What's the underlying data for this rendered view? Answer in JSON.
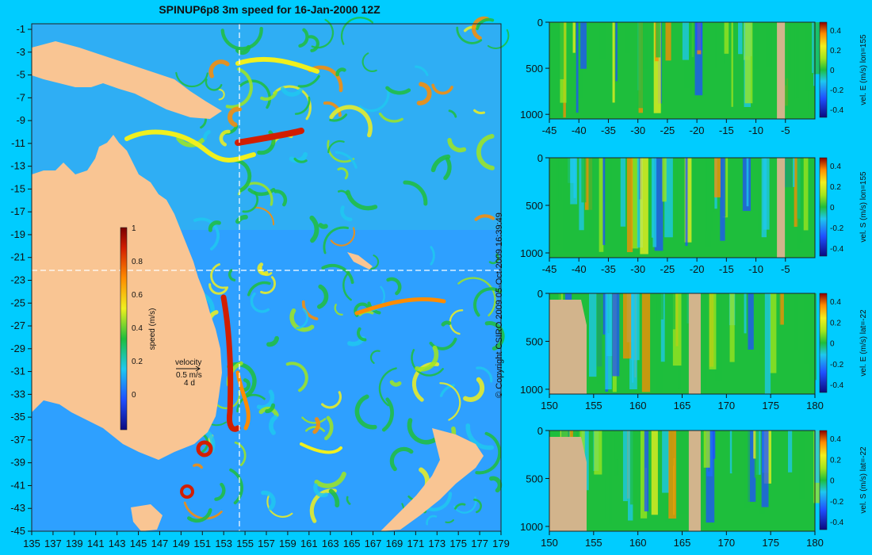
{
  "title": "SPINUP6p8 3m speed for 16-Jan-2000 12Z",
  "copyright": "© Copyright CSIRO 2009  05-Oct-2009 16:39:49",
  "map": {
    "lon_ticks": [
      "135",
      "137",
      "139",
      "141",
      "143",
      "145",
      "147",
      "149",
      "151",
      "153",
      "155",
      "157",
      "159",
      "161",
      "163",
      "165",
      "167",
      "169",
      "171",
      "173",
      "175",
      "177",
      "179"
    ],
    "lat_ticks": [
      "-1",
      "-3",
      "-5",
      "-7",
      "-9",
      "-11",
      "-13",
      "-15",
      "-17",
      "-19",
      "-21",
      "-23",
      "-25",
      "-27",
      "-29",
      "-31",
      "-33",
      "-35",
      "-37",
      "-39",
      "-41",
      "-43",
      "-45"
    ],
    "colorbar": {
      "label": "speed (m/s)",
      "ticks": [
        "1",
        "0.8",
        "0.6",
        "0.4",
        "0.2",
        "0"
      ]
    },
    "velocity_key": {
      "title": "velocity",
      "speed": "0.5 m/s",
      "duration": "4 d"
    }
  },
  "colors": {
    "background": "#00ccff",
    "land": "#f9c593",
    "section_land": "#d2b48c"
  },
  "chart_data": [
    {
      "type": "heatmap",
      "title": "",
      "xlabel": "",
      "ylabel": "",
      "colorbar_label": "vel. E (m/s) lon=155",
      "x_ticks": [
        "-45",
        "-40",
        "-35",
        "-30",
        "-25",
        "-20",
        "-15",
        "-10",
        "-5"
      ],
      "y_ticks": [
        "0",
        "500",
        "1000"
      ],
      "cbar_ticks": [
        "0.4",
        "0.2",
        "0",
        "-0.2",
        "-0.4"
      ],
      "xlim": [
        -45,
        0
      ],
      "ylim": [
        1050,
        0
      ]
    },
    {
      "type": "heatmap",
      "title": "",
      "xlabel": "",
      "ylabel": "",
      "colorbar_label": "vel. S (m/s) lon=155",
      "x_ticks": [
        "-45",
        "-40",
        "-35",
        "-30",
        "-25",
        "-20",
        "-15",
        "-10",
        "-5"
      ],
      "y_ticks": [
        "0",
        "500",
        "1000"
      ],
      "cbar_ticks": [
        "0.4",
        "0.2",
        "0",
        "-0.2",
        "-0.4"
      ],
      "xlim": [
        -45,
        0
      ],
      "ylim": [
        1050,
        0
      ]
    },
    {
      "type": "heatmap",
      "title": "",
      "xlabel": "",
      "ylabel": "",
      "colorbar_label": "vel. E (m/s) lat=-22",
      "x_ticks": [
        "150",
        "155",
        "160",
        "165",
        "170",
        "175",
        "180"
      ],
      "y_ticks": [
        "0",
        "500",
        "1000"
      ],
      "cbar_ticks": [
        "0.4",
        "0.2",
        "0",
        "-0.2",
        "-0.4"
      ],
      "xlim": [
        150,
        180
      ],
      "ylim": [
        1050,
        0
      ]
    },
    {
      "type": "heatmap",
      "title": "",
      "xlabel": "",
      "ylabel": "",
      "colorbar_label": "vel. S (m/s) lat=-22",
      "x_ticks": [
        "150",
        "155",
        "160",
        "165",
        "170",
        "175",
        "180"
      ],
      "y_ticks": [
        "0",
        "500",
        "1000"
      ],
      "cbar_ticks": [
        "0.4",
        "0.2",
        "0",
        "-0.2",
        "-0.4"
      ],
      "xlim": [
        150,
        180
      ],
      "ylim": [
        1050,
        0
      ]
    }
  ]
}
